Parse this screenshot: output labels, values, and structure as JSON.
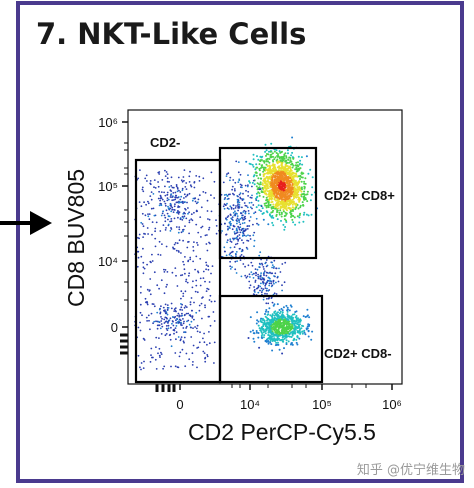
{
  "panel_title": "7. NKT-Like Cells",
  "watermark": "知乎 @优宁维生物",
  "chart_data": {
    "type": "scatter",
    "title": "7. NKT-Like Cells",
    "xlabel": "CD2 PerCP-Cy5.5",
    "ylabel": "CD8 BUV805",
    "x_scale": "biexponential",
    "y_scale": "biexponential",
    "x_ticks": [
      {
        "value": "0",
        "label": "0"
      },
      {
        "value": "1e4",
        "label": "10⁴"
      },
      {
        "value": "1e5",
        "label": "10⁵"
      },
      {
        "value": "1e6",
        "label": "10⁶"
      }
    ],
    "y_ticks": [
      {
        "value": "0",
        "label": "0"
      },
      {
        "value": "1e4",
        "label": "10⁴"
      },
      {
        "value": "1e5",
        "label": "10⁵"
      },
      {
        "value": "1e6",
        "label": "10⁶"
      }
    ],
    "gates": [
      {
        "name": "CD2-",
        "x_range": [
          "min",
          "3e3"
        ],
        "y_range": [
          "min",
          "1.2e5"
        ]
      },
      {
        "name": "CD2+ CD8+",
        "x_range": [
          "3e3",
          "1.2e5"
        ],
        "y_range": [
          "1.2e4",
          "3e5"
        ]
      },
      {
        "name": "CD2+ CD8-",
        "x_range": [
          "3e3",
          "1e5"
        ],
        "y_range": [
          "min",
          "5e3"
        ]
      }
    ],
    "populations": [
      {
        "gate": "CD2+ CD8+",
        "center": {
          "x": "3e4",
          "y": "1e5"
        },
        "density": "high"
      },
      {
        "gate": "CD2+ CD8-",
        "center": {
          "x": "3e4",
          "y": "1e3"
        },
        "density": "medium"
      },
      {
        "gate": "CD2-",
        "center": {
          "x": "0",
          "y": "5e4"
        },
        "density": "low"
      },
      {
        "gate": "CD2-",
        "center": {
          "x": "0",
          "y": "1e3"
        },
        "density": "low"
      }
    ],
    "density_colors": [
      "#2b3fb0",
      "#1e7fd0",
      "#20c0c0",
      "#4dd24a",
      "#e8e030",
      "#f08a20",
      "#e8201e"
    ],
    "gate_arrow": "left"
  }
}
